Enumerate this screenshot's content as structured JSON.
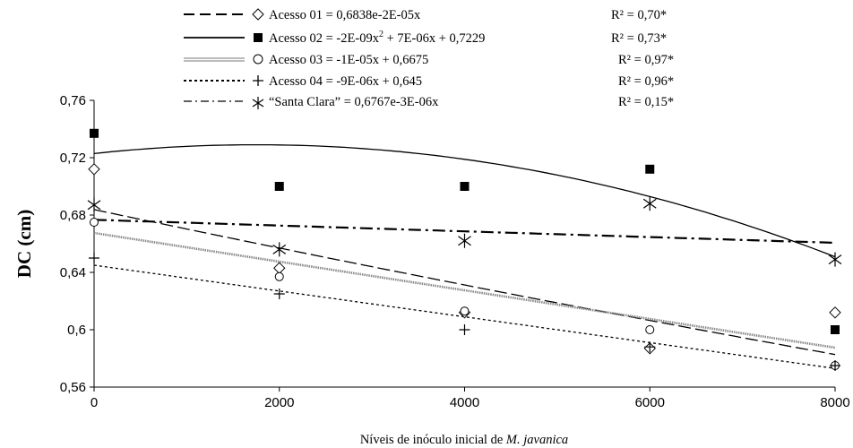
{
  "chart_data": {
    "type": "scatter",
    "xlabel_main": "Níveis de inóculo inicial de ",
    "xlabel_italic": "M. javanica",
    "ylabel": "DC (cm)",
    "xlim": [
      0,
      8000
    ],
    "ylim": [
      0.56,
      0.76
    ],
    "x_ticks": [
      "0",
      "2000",
      "4000",
      "6000",
      "8000"
    ],
    "y_ticks": [
      "0,56",
      "0,6",
      "0,64",
      "0,68",
      "0,72",
      "0,76"
    ],
    "x_tick_values": [
      0,
      2000,
      4000,
      6000,
      8000
    ],
    "y_tick_values": [
      0.56,
      0.6,
      0.64,
      0.68,
      0.72,
      0.76
    ],
    "grid": false,
    "legend_position": "top",
    "series": [
      {
        "label": "Acesso 01 = 0,6838e-2E-05x",
        "r2": "R² = 0,70*",
        "marker": "diamond-open",
        "line_style": "long-dash",
        "fit": {
          "kind": "exp",
          "a": 0.6838,
          "b": -2e-05
        },
        "x": [
          0,
          2000,
          4000,
          6000,
          8000
        ],
        "y": [
          0.712,
          0.643,
          0.612,
          0.587,
          0.612
        ]
      },
      {
        "label_prefix": "Acesso 02 = -2E-09x",
        "label_sup": "2",
        "label_suffix": " + 7E-06x + 0,7229",
        "r2": "R² = 0,73*",
        "marker": "square-filled",
        "line_style": "solid",
        "fit": {
          "kind": "quad",
          "a": -2e-09,
          "b": 7e-06,
          "c": 0.7229
        },
        "x": [
          0,
          2000,
          4000,
          6000,
          8000
        ],
        "y": [
          0.737,
          0.7,
          0.7,
          0.712,
          0.6
        ]
      },
      {
        "label": "Acesso 03 = -1E-05x + 0,6675",
        "r2": "R² = 0,97*",
        "marker": "circle-open",
        "line_style": "double-thin",
        "fit": {
          "kind": "lin",
          "a": -1e-05,
          "b": 0.6675
        },
        "x": [
          0,
          2000,
          4000,
          6000,
          8000
        ],
        "y": [
          0.675,
          0.637,
          0.613,
          0.6,
          0.575
        ]
      },
      {
        "label": "Acesso 04 = -9E-06x + 0,645",
        "r2": "R² = 0,96*",
        "marker": "plus",
        "line_style": "short-dash",
        "fit": {
          "kind": "lin",
          "a": -9e-06,
          "b": 0.645
        },
        "x": [
          0,
          2000,
          4000,
          6000,
          8000
        ],
        "y": [
          0.65,
          0.625,
          0.6,
          0.588,
          0.575
        ]
      },
      {
        "label": "“Santa Clara” = 0,6767e-3E-06x",
        "r2": "R² = 0,15*",
        "marker": "asterisk",
        "line_style": "dash-dot",
        "fit": {
          "kind": "exp",
          "a": 0.6767,
          "b": -3e-06
        },
        "x": [
          0,
          2000,
          4000,
          6000,
          8000
        ],
        "y": [
          0.687,
          0.656,
          0.662,
          0.688,
          0.649
        ]
      }
    ]
  }
}
